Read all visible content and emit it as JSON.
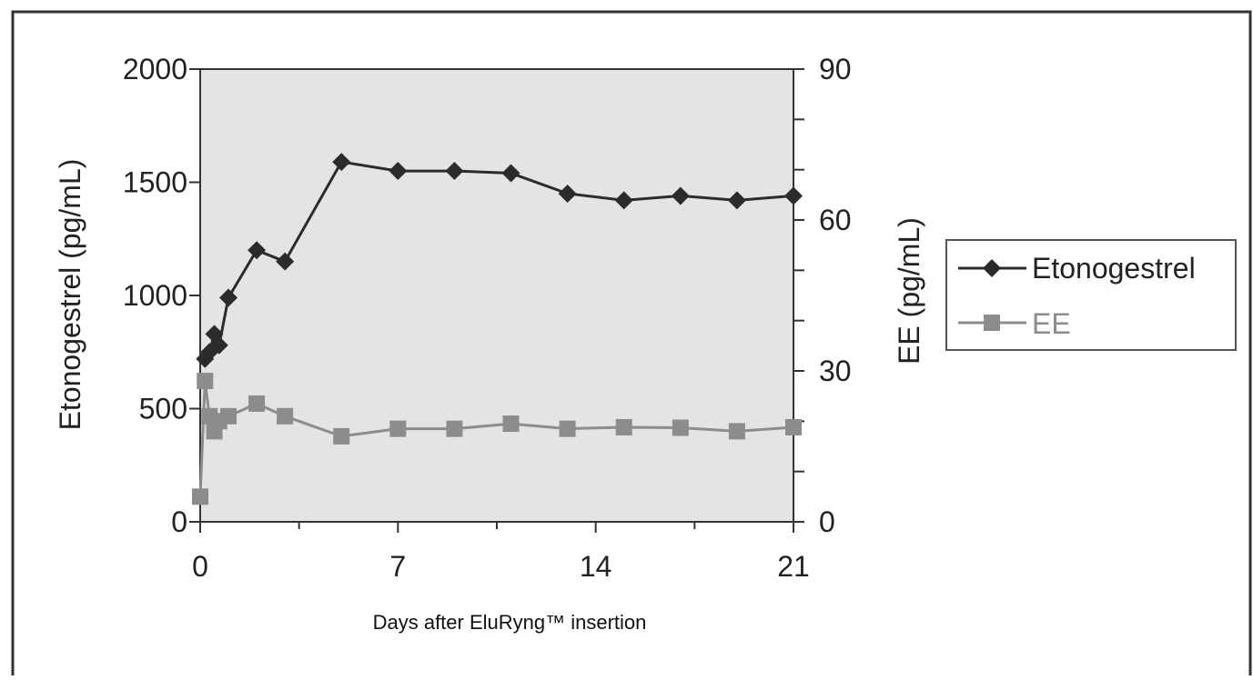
{
  "chart_data": {
    "type": "line",
    "xlabel": "Days after EluRyng™ insertion",
    "ylabel_left": "Etonogestrel (pg/mL)",
    "ylabel_right": "EE (pg/mL)",
    "xlim": [
      0,
      21
    ],
    "ylim_left": [
      0,
      2000
    ],
    "ylim_right": [
      0,
      90
    ],
    "x_ticks": [
      "0",
      "7",
      "14",
      "21"
    ],
    "y_ticks_left": [
      "0",
      "500",
      "1000",
      "1500",
      "2000"
    ],
    "y_ticks_right": [
      "0",
      "30",
      "60",
      "90"
    ],
    "grid": false,
    "legend_position": "right",
    "series": [
      {
        "name": "Etonogestrel",
        "axis": "left",
        "marker": "diamond",
        "color": "#2b2b2b",
        "x": [
          0.17,
          0.33,
          0.5,
          0.67,
          1,
          2,
          3,
          5,
          7,
          9,
          11,
          13,
          15,
          17,
          19,
          21
        ],
        "y": [
          720,
          750,
          830,
          780,
          990,
          1200,
          1150,
          1590,
          1550,
          1550,
          1540,
          1450,
          1420,
          1440,
          1420,
          1440
        ]
      },
      {
        "name": "EE",
        "axis": "right",
        "marker": "square",
        "color": "#8c8c8c",
        "x": [
          0,
          0.17,
          0.33,
          0.5,
          0.67,
          1,
          2,
          3,
          5,
          7,
          9,
          11,
          13,
          15,
          17,
          19,
          21
        ],
        "y": [
          5,
          28,
          21,
          18,
          20,
          21,
          23.5,
          21,
          17,
          18.5,
          18.5,
          19.5,
          18.5,
          18.8,
          18.7,
          18,
          18.8
        ]
      }
    ]
  }
}
